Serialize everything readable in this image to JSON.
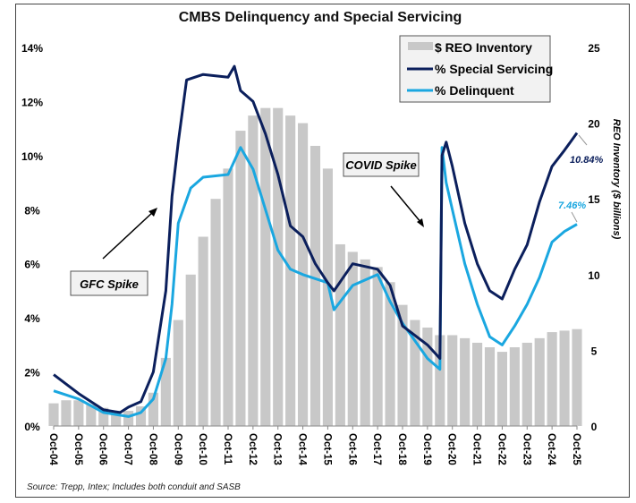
{
  "chart_data": {
    "type": "bar+line",
    "title": "CMBS Delinquency and Special Servicing",
    "source_note": "Source: Trepp, Intex; Includes both conduit and SASB",
    "y_left": {
      "ylim": [
        0,
        14
      ],
      "ticks": [
        "0%",
        "2%",
        "4%",
        "6%",
        "8%",
        "10%",
        "12%",
        "14%"
      ]
    },
    "y_right": {
      "ylabel": "REO Inventory ($ billions)",
      "ylim": [
        0,
        25
      ],
      "ticks": [
        "0",
        "5",
        "10",
        "15",
        "20",
        "25"
      ]
    },
    "x_ticks": [
      "Oct-04",
      "Oct-05",
      "Oct-06",
      "Oct-07",
      "Oct-08",
      "Oct-09",
      "Oct-10",
      "Oct-11",
      "Oct-12",
      "Oct-13",
      "Oct-14",
      "Oct-15",
      "Oct-16",
      "Oct-17",
      "Oct-18",
      "Oct-19",
      "Oct-20",
      "Oct-21",
      "Oct-22",
      "Oct-23",
      "Oct-24",
      "Oct-25"
    ],
    "grid": false,
    "legend": {
      "placement": "top-right",
      "entries": [
        "$ REO Inventory",
        "% Special Servicing",
        "% Delinquent"
      ]
    },
    "colors": {
      "reo": "#c8c8c8",
      "special_servicing": "#0b1f5c",
      "delinquent": "#1aa7e0"
    },
    "reo": {
      "name": "$ REO Inventory",
      "x": [
        "2004-10",
        "2005-04",
        "2005-10",
        "2006-04",
        "2006-10",
        "2007-04",
        "2007-10",
        "2008-04",
        "2008-10",
        "2009-04",
        "2009-10",
        "2010-04",
        "2010-10",
        "2011-04",
        "2011-10",
        "2012-04",
        "2012-10",
        "2013-04",
        "2013-10",
        "2014-04",
        "2014-10",
        "2015-04",
        "2015-10",
        "2016-04",
        "2016-10",
        "2017-04",
        "2017-10",
        "2018-04",
        "2018-10",
        "2019-04",
        "2019-10",
        "2020-04",
        "2020-10",
        "2021-04",
        "2021-10",
        "2022-04",
        "2022-10",
        "2023-04",
        "2023-10",
        "2024-04",
        "2024-10",
        "2025-04",
        "2025-10"
      ],
      "values": [
        1.5,
        1.7,
        1.7,
        1.4,
        1.2,
        1.0,
        1.0,
        1.3,
        2.2,
        4.5,
        7.0,
        10.0,
        12.5,
        15.0,
        17.0,
        19.5,
        20.5,
        21.0,
        21.0,
        20.5,
        20.0,
        18.5,
        17.0,
        12.0,
        11.5,
        11.0,
        10.5,
        9.5,
        8.0,
        7.0,
        6.5,
        6.0,
        6.0,
        5.8,
        5.5,
        5.2,
        4.9,
        5.2,
        5.5,
        5.8,
        6.2,
        6.3,
        6.4
      ]
    },
    "special_servicing": {
      "name": "% Special Servicing",
      "x": [
        "2004-10",
        "2005-10",
        "2006-10",
        "2007-06",
        "2007-10",
        "2008-04",
        "2008-10",
        "2009-04",
        "2009-07",
        "2009-10",
        "2010-02",
        "2010-10",
        "2011-10",
        "2012-01",
        "2012-04",
        "2012-10",
        "2013-04",
        "2013-10",
        "2014-04",
        "2014-10",
        "2015-04",
        "2015-10",
        "2016-01",
        "2016-10",
        "2017-10",
        "2018-04",
        "2018-10",
        "2019-10",
        "2020-04",
        "2020-05",
        "2020-07",
        "2020-10",
        "2021-04",
        "2021-10",
        "2022-04",
        "2022-10",
        "2023-04",
        "2023-10",
        "2024-04",
        "2024-10",
        "2025-04",
        "2025-10"
      ],
      "values": [
        1.9,
        1.2,
        0.6,
        0.5,
        0.7,
        0.9,
        2.0,
        5.0,
        8.5,
        10.5,
        12.8,
        13.0,
        12.9,
        13.3,
        12.4,
        12.0,
        10.8,
        9.3,
        7.4,
        7.0,
        6.0,
        5.3,
        5.0,
        6.0,
        5.8,
        5.2,
        3.7,
        3.0,
        2.5,
        10.0,
        10.5,
        9.6,
        7.5,
        6.0,
        5.0,
        4.7,
        5.8,
        6.7,
        8.3,
        9.6,
        10.2,
        10.84
      ],
      "end_label": "10.84%"
    },
    "delinquent": {
      "name": "% Delinquent",
      "x": [
        "2004-10",
        "2005-10",
        "2006-10",
        "2007-10",
        "2008-04",
        "2008-10",
        "2009-04",
        "2009-07",
        "2009-10",
        "2010-04",
        "2010-10",
        "2011-10",
        "2012-04",
        "2012-10",
        "2013-04",
        "2013-10",
        "2014-04",
        "2014-10",
        "2015-10",
        "2016-01",
        "2016-10",
        "2017-10",
        "2018-04",
        "2018-10",
        "2019-10",
        "2020-04",
        "2020-05",
        "2020-07",
        "2020-10",
        "2021-04",
        "2021-10",
        "2022-04",
        "2022-10",
        "2023-04",
        "2023-10",
        "2024-04",
        "2024-10",
        "2025-04",
        "2025-10"
      ],
      "values": [
        1.3,
        1.0,
        0.5,
        0.35,
        0.5,
        1.0,
        2.5,
        4.5,
        7.5,
        8.8,
        9.2,
        9.3,
        10.3,
        9.5,
        8.0,
        6.5,
        5.8,
        5.6,
        5.3,
        4.3,
        5.2,
        5.6,
        4.6,
        3.8,
        2.5,
        2.1,
        10.3,
        9.0,
        8.0,
        6.0,
        4.5,
        3.3,
        3.0,
        3.7,
        4.5,
        5.5,
        6.8,
        7.2,
        7.46
      ],
      "end_label": "7.46%"
    },
    "annotations": [
      "GFC Spike",
      "COVID Spike"
    ]
  }
}
